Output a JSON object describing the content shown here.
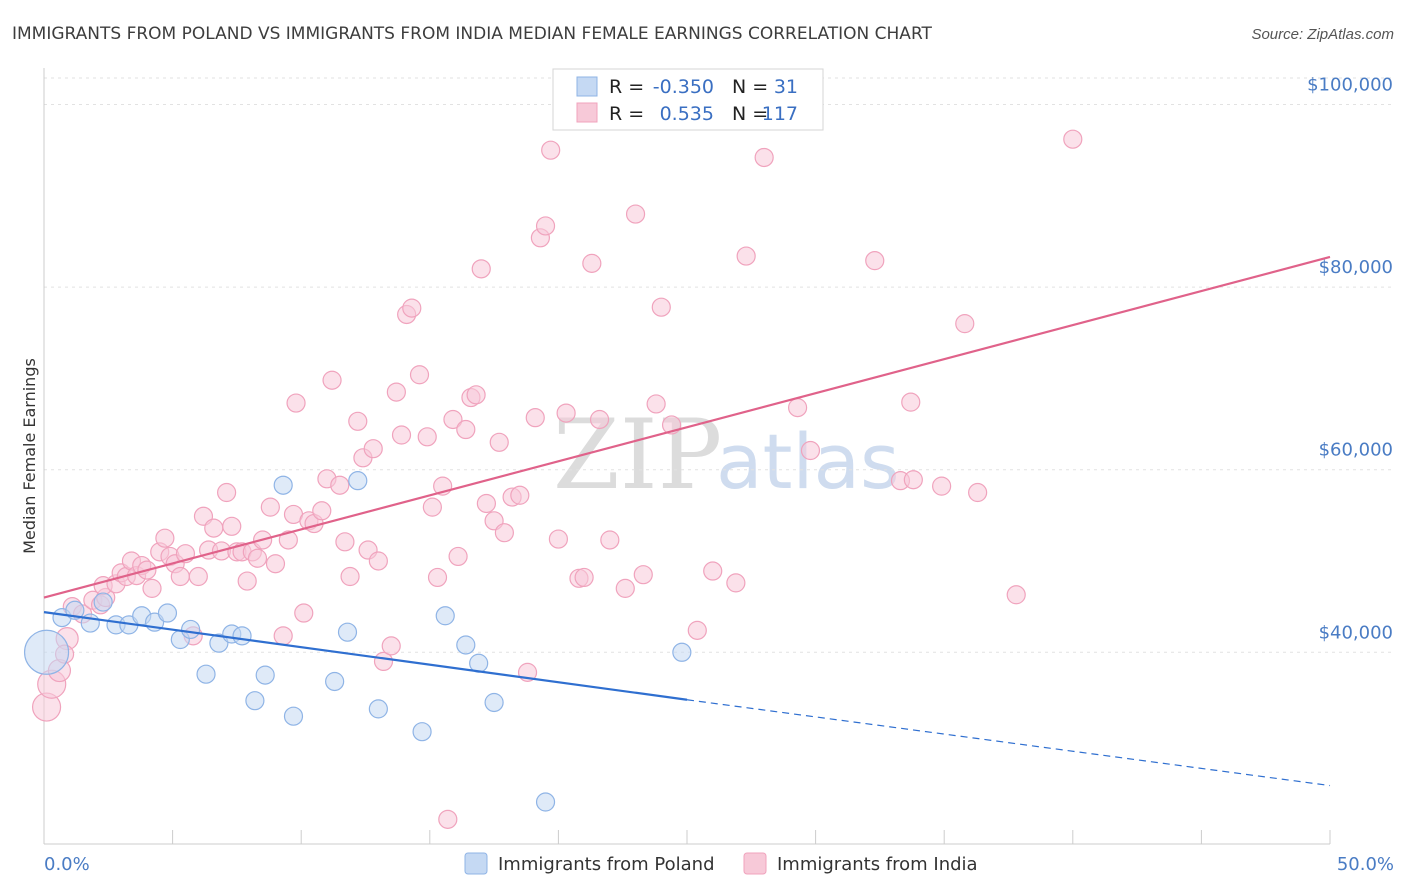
{
  "chart_data": {
    "type": "scatter",
    "title": "IMMIGRANTS FROM POLAND VS IMMIGRANTS FROM INDIA MEDIAN FEMALE EARNINGS CORRELATION CHART",
    "source": "Source: ZipAtlas.com",
    "xlabel": "",
    "ylabel": "Median Female Earnings",
    "xlim": [
      0,
      50
    ],
    "ylim": [
      19000,
      104000
    ],
    "x_tick_labels": {
      "min": "0.0%",
      "max": "50.0%"
    },
    "y_ticks": [
      {
        "value": 40000,
        "label": "$40,000"
      },
      {
        "value": 60000,
        "label": "$60,000"
      },
      {
        "value": 80000,
        "label": "$80,000"
      },
      {
        "value": 100000,
        "label": "$100,000"
      }
    ],
    "watermark": {
      "zip": "ZIP",
      "atlas": "atlas"
    },
    "legend": {
      "rows": [
        {
          "r_label": "R =",
          "r_value": "-0.350",
          "n_label": "N =",
          "n_value": "31"
        },
        {
          "r_label": "R =",
          "r_value": "0.535",
          "n_label": "N =",
          "n_value": "117"
        }
      ]
    },
    "series": [
      {
        "name": "Immigrants from Poland",
        "color": "#8fb4e6",
        "fill": "#c5d9f3",
        "line_color": "#2f6fd0",
        "r": -0.35,
        "n": 31,
        "trend": {
          "x0": 0,
          "y0": 44400,
          "x1": 25,
          "y1": 34800,
          "dash_to_x": 50,
          "dash_to_y": 25400
        },
        "points": [
          [
            0.1,
            40000,
            22
          ],
          [
            0.7,
            43800,
            9
          ],
          [
            1.2,
            44600,
            9
          ],
          [
            1.8,
            43200,
            9
          ],
          [
            2.3,
            45500,
            9
          ],
          [
            2.8,
            43000,
            9
          ],
          [
            3.3,
            43000,
            9
          ],
          [
            3.8,
            44000,
            9
          ],
          [
            4.3,
            43300,
            9
          ],
          [
            4.8,
            44300,
            9
          ],
          [
            5.3,
            41400,
            9
          ],
          [
            5.7,
            42500,
            9
          ],
          [
            6.3,
            37600,
            9
          ],
          [
            6.8,
            41000,
            9
          ],
          [
            7.3,
            42000,
            9
          ],
          [
            7.7,
            41800,
            9
          ],
          [
            8.2,
            34700,
            9
          ],
          [
            8.6,
            37500,
            9
          ],
          [
            9.3,
            58300,
            9
          ],
          [
            9.7,
            33000,
            9
          ],
          [
            11.3,
            36800,
            9
          ],
          [
            11.8,
            42200,
            9
          ],
          [
            12.2,
            58800,
            9
          ],
          [
            13.0,
            33800,
            9
          ],
          [
            14.7,
            31300,
            9
          ],
          [
            15.6,
            44000,
            9
          ],
          [
            16.4,
            40800,
            9
          ],
          [
            16.9,
            38800,
            9
          ],
          [
            17.5,
            34500,
            9
          ],
          [
            19.5,
            23600,
            9
          ],
          [
            24.8,
            40000,
            9
          ]
        ]
      },
      {
        "name": "Immigrants from India",
        "color": "#f0a3bd",
        "fill": "#f7c9d8",
        "line_color": "#e0628a",
        "r": 0.535,
        "n": 117,
        "trend": {
          "x0": 0,
          "y0": 46000,
          "x1": 50,
          "y1": 83300
        },
        "points": [
          [
            0.1,
            34000,
            14
          ],
          [
            0.3,
            36500,
            14
          ],
          [
            0.6,
            38000,
            11
          ],
          [
            0.9,
            41500,
            11
          ],
          [
            0.8,
            39800,
            9
          ],
          [
            1.1,
            45000,
            9
          ],
          [
            1.5,
            44200,
            9
          ],
          [
            1.9,
            45700,
            9
          ],
          [
            2.2,
            45200,
            9
          ],
          [
            2.4,
            46000,
            9
          ],
          [
            2.3,
            47300,
            9
          ],
          [
            2.8,
            47500,
            9
          ],
          [
            3.0,
            48700,
            9
          ],
          [
            3.2,
            48300,
            9
          ],
          [
            3.4,
            50000,
            9
          ],
          [
            3.6,
            48400,
            9
          ],
          [
            3.8,
            49500,
            9
          ],
          [
            4.0,
            49000,
            9
          ],
          [
            4.2,
            47000,
            9
          ],
          [
            4.5,
            51000,
            9
          ],
          [
            4.7,
            52500,
            9
          ],
          [
            4.9,
            50500,
            9
          ],
          [
            5.1,
            49700,
            9
          ],
          [
            5.3,
            48300,
            9
          ],
          [
            5.5,
            50800,
            9
          ],
          [
            5.8,
            41800,
            9
          ],
          [
            6.0,
            48300,
            9
          ],
          [
            6.2,
            54900,
            9
          ],
          [
            6.4,
            51200,
            9
          ],
          [
            6.6,
            53600,
            9
          ],
          [
            6.9,
            51100,
            9
          ],
          [
            7.1,
            57500,
            9
          ],
          [
            7.3,
            53800,
            9
          ],
          [
            7.5,
            51000,
            9
          ],
          [
            7.7,
            51000,
            9
          ],
          [
            7.9,
            47800,
            9
          ],
          [
            8.1,
            51000,
            9
          ],
          [
            8.3,
            50300,
            9
          ],
          [
            8.5,
            52300,
            9
          ],
          [
            8.8,
            55900,
            9
          ],
          [
            9.0,
            49700,
            9
          ],
          [
            9.3,
            41800,
            9
          ],
          [
            9.5,
            52300,
            9
          ],
          [
            9.7,
            55100,
            9
          ],
          [
            9.8,
            67300,
            9
          ],
          [
            10.1,
            44300,
            9
          ],
          [
            10.3,
            54400,
            9
          ],
          [
            10.5,
            54100,
            9
          ],
          [
            10.8,
            55500,
            9
          ],
          [
            11.0,
            59000,
            9
          ],
          [
            11.2,
            69800,
            9
          ],
          [
            11.5,
            58300,
            9
          ],
          [
            11.7,
            52100,
            9
          ],
          [
            11.9,
            48300,
            9
          ],
          [
            12.2,
            65300,
            9
          ],
          [
            12.4,
            61300,
            9
          ],
          [
            12.6,
            51200,
            9
          ],
          [
            12.8,
            62300,
            9
          ],
          [
            13.0,
            50000,
            9
          ],
          [
            13.2,
            39000,
            9
          ],
          [
            13.5,
            40700,
            9
          ],
          [
            13.7,
            68500,
            9
          ],
          [
            13.9,
            63800,
            9
          ],
          [
            14.1,
            77000,
            9
          ],
          [
            14.3,
            77700,
            9
          ],
          [
            14.6,
            70400,
            9
          ],
          [
            14.9,
            63600,
            9
          ],
          [
            15.1,
            55900,
            9
          ],
          [
            15.3,
            48200,
            9
          ],
          [
            15.5,
            58200,
            9
          ],
          [
            15.7,
            21700,
            9
          ],
          [
            15.9,
            65500,
            9
          ],
          [
            16.1,
            50500,
            9
          ],
          [
            16.4,
            64400,
            9
          ],
          [
            16.6,
            67900,
            9
          ],
          [
            16.8,
            68200,
            9
          ],
          [
            17.0,
            82000,
            9
          ],
          [
            17.2,
            56300,
            9
          ],
          [
            17.5,
            54400,
            9
          ],
          [
            17.7,
            63000,
            9
          ],
          [
            17.9,
            53100,
            9
          ],
          [
            18.2,
            57000,
            9
          ],
          [
            18.5,
            57200,
            9
          ],
          [
            18.8,
            37800,
            9
          ],
          [
            19.1,
            65700,
            9
          ],
          [
            19.3,
            85400,
            9
          ],
          [
            19.5,
            86700,
            9
          ],
          [
            19.7,
            95000,
            9
          ],
          [
            20.0,
            52400,
            9
          ],
          [
            20.3,
            66200,
            9
          ],
          [
            20.8,
            48100,
            9
          ],
          [
            21.0,
            48200,
            9
          ],
          [
            21.3,
            82600,
            9
          ],
          [
            21.6,
            65500,
            9
          ],
          [
            22.0,
            52300,
            9
          ],
          [
            22.6,
            47000,
            9
          ],
          [
            23.0,
            88000,
            9
          ],
          [
            23.3,
            48500,
            9
          ],
          [
            23.8,
            67200,
            9
          ],
          [
            24.0,
            77800,
            9
          ],
          [
            24.4,
            64900,
            9
          ],
          [
            25.4,
            42400,
            9
          ],
          [
            26.0,
            48900,
            9
          ],
          [
            26.9,
            47600,
            9
          ],
          [
            27.3,
            83400,
            9
          ],
          [
            28.0,
            94200,
            9
          ],
          [
            29.3,
            66800,
            9
          ],
          [
            29.8,
            62100,
            9
          ],
          [
            32.3,
            82900,
            9
          ],
          [
            33.3,
            58800,
            9
          ],
          [
            33.7,
            67400,
            9
          ],
          [
            33.8,
            58900,
            9
          ],
          [
            34.9,
            58200,
            9
          ],
          [
            35.8,
            76000,
            9
          ],
          [
            36.3,
            57500,
            9
          ],
          [
            37.8,
            46300,
            9
          ],
          [
            40.0,
            96200,
            9
          ]
        ]
      }
    ]
  }
}
